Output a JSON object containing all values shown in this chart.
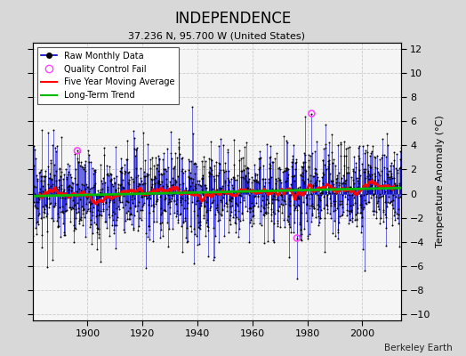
{
  "title": "INDEPENDENCE",
  "subtitle": "37.236 N, 95.700 W (United States)",
  "ylabel": "Temperature Anomaly (°C)",
  "credit": "Berkeley Earth",
  "xlim": [
    1880,
    2014
  ],
  "ylim": [
    -10.5,
    12.5
  ],
  "yticks": [
    -10,
    -8,
    -6,
    -4,
    -2,
    0,
    2,
    4,
    6,
    8,
    10,
    12
  ],
  "xticks": [
    1900,
    1920,
    1940,
    1960,
    1980,
    2000
  ],
  "bg_color": "#d8d8d8",
  "plot_bg_color": "#f5f5f5",
  "raw_line_color": "#0000cc",
  "raw_dot_color": "#000000",
  "moving_avg_color": "#ff0000",
  "trend_color": "#00bb00",
  "qc_fail_color": "#ff44ff",
  "seed": 17,
  "n_months": 1608,
  "start_year": 1880,
  "end_year": 2014
}
